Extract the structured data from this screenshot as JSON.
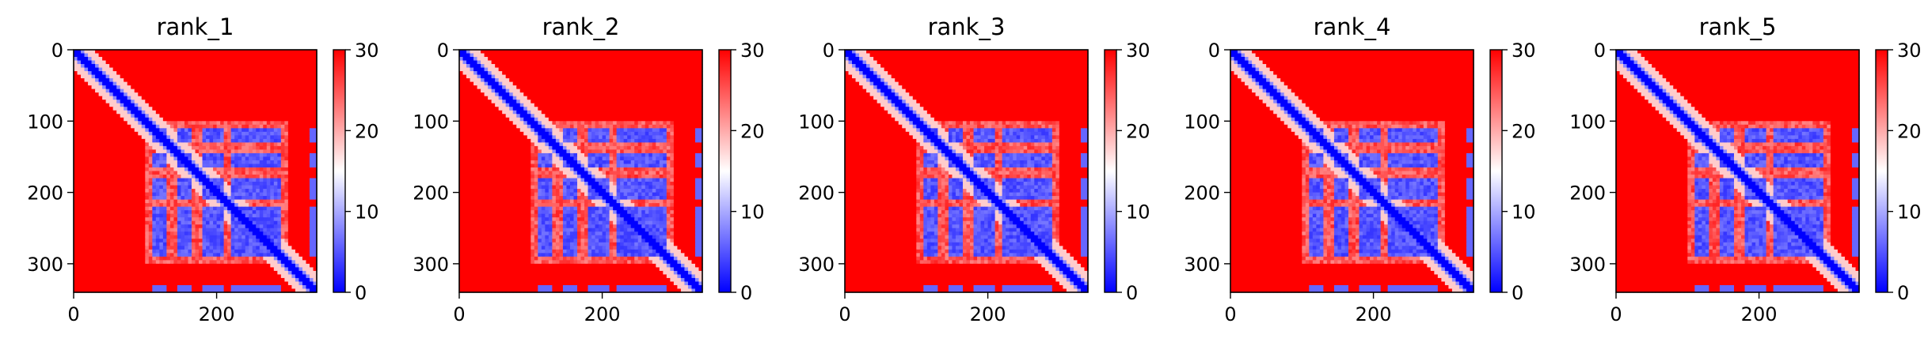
{
  "colors": {
    "low": "#0000ff",
    "mid": "#ffffff",
    "high": "#ff0000",
    "axis": "#000000"
  },
  "chart_data": [
    {
      "type": "heatmap",
      "title": "rank_1",
      "xlabel": "",
      "ylabel": "",
      "colormap": "bwr",
      "clim": [
        0,
        30
      ],
      "xlim": [
        0,
        340
      ],
      "ylim": [
        340,
        0
      ],
      "xticks": [
        0,
        200
      ],
      "yticks": [
        0,
        100,
        200,
        300
      ],
      "colorbar_ticks": [
        0,
        10,
        20,
        30
      ],
      "description_values": {
        "low_regions": "diagonal band and residue blocks ~115-290 x ~115-290",
        "high_regions": "off-diagonal"
      }
    },
    {
      "type": "heatmap",
      "title": "rank_2",
      "xlabel": "",
      "ylabel": "",
      "colormap": "bwr",
      "clim": [
        0,
        30
      ],
      "xlim": [
        0,
        340
      ],
      "ylim": [
        340,
        0
      ],
      "xticks": [
        0,
        200
      ],
      "yticks": [
        0,
        100,
        200,
        300
      ],
      "colorbar_ticks": [
        0,
        10,
        20,
        30
      ]
    },
    {
      "type": "heatmap",
      "title": "rank_3",
      "xlabel": "",
      "ylabel": "",
      "colormap": "bwr",
      "clim": [
        0,
        30
      ],
      "xlim": [
        0,
        340
      ],
      "ylim": [
        340,
        0
      ],
      "xticks": [
        0,
        200
      ],
      "yticks": [
        0,
        100,
        200,
        300
      ],
      "colorbar_ticks": [
        0,
        10,
        20,
        30
      ]
    },
    {
      "type": "heatmap",
      "title": "rank_4",
      "xlabel": "",
      "ylabel": "",
      "colormap": "bwr",
      "clim": [
        0,
        30
      ],
      "xlim": [
        0,
        340
      ],
      "ylim": [
        340,
        0
      ],
      "xticks": [
        0,
        200
      ],
      "yticks": [
        0,
        100,
        200,
        300
      ],
      "colorbar_ticks": [
        0,
        10,
        20,
        30
      ]
    },
    {
      "type": "heatmap",
      "title": "rank_5",
      "xlabel": "",
      "ylabel": "",
      "colormap": "bwr",
      "clim": [
        0,
        30
      ],
      "xlim": [
        0,
        340
      ],
      "ylim": [
        340,
        0
      ],
      "xticks": [
        0,
        200
      ],
      "yticks": [
        0,
        100,
        200,
        300
      ],
      "colorbar_ticks": [
        0,
        10,
        20,
        30
      ]
    }
  ]
}
